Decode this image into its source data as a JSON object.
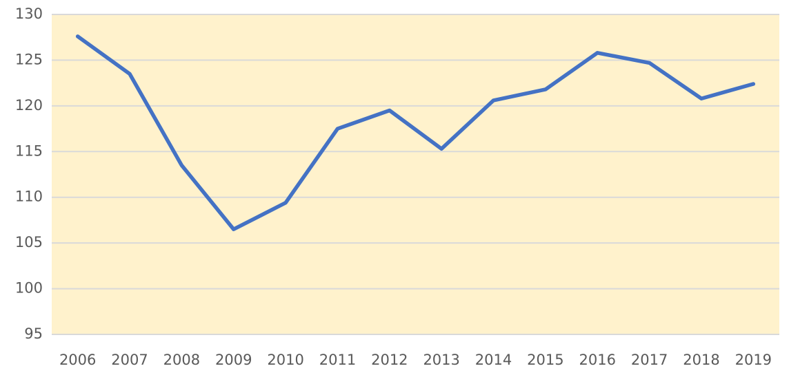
{
  "chart_data": {
    "type": "line",
    "categories": [
      "2006",
      "2007",
      "2008",
      "2009",
      "2010",
      "2011",
      "2012",
      "2013",
      "2014",
      "2015",
      "2016",
      "2017",
      "2018",
      "2019"
    ],
    "values": [
      127.6,
      123.5,
      113.5,
      106.5,
      109.4,
      117.5,
      119.5,
      115.3,
      120.6,
      121.8,
      125.8,
      124.7,
      120.8,
      122.4
    ],
    "color": "#4472c4",
    "background": "#fff2cc",
    "ylim": [
      95,
      130
    ],
    "yticks": [
      95,
      100,
      105,
      110,
      115,
      120,
      125,
      130
    ],
    "grid": true
  }
}
